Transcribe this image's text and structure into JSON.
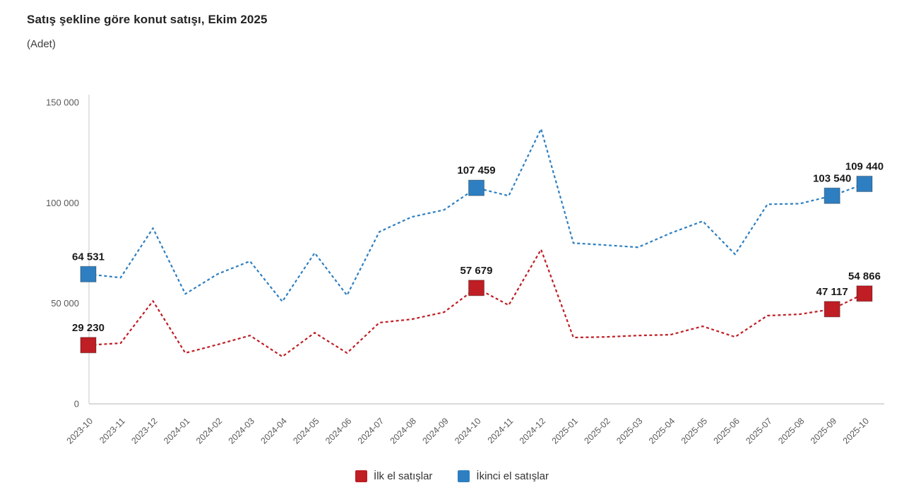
{
  "header": {
    "title": "Satış şekline göre konut satışı, Ekim 2025",
    "subtitle": "(Adet)"
  },
  "chart_data": {
    "type": "line",
    "title": "Satış şekline göre konut satışı, Ekim 2025",
    "xlabel": "",
    "ylabel": "(Adet)",
    "ylim": [
      0,
      150000
    ],
    "grid": false,
    "line_style": "dashed",
    "legend_position": "bottom",
    "categories": [
      "2023-10",
      "2023-11",
      "2023-12",
      "2024-01",
      "2024-02",
      "2024-03",
      "2024-04",
      "2024-05",
      "2024-06",
      "2024-07",
      "2024-08",
      "2024-09",
      "2024-10",
      "2024-11",
      "2024-12",
      "2025-01",
      "2025-02",
      "2025-03",
      "2025-04",
      "2025-05",
      "2025-06",
      "2025-07",
      "2025-08",
      "2025-09",
      "2025-10"
    ],
    "yticks": [
      {
        "value": 0,
        "label": "0"
      },
      {
        "value": 50000,
        "label": "50 000"
      },
      {
        "value": 100000,
        "label": "100 000"
      },
      {
        "value": 150000,
        "label": "150 000"
      }
    ],
    "series": [
      {
        "name": "İkinci el satışlar",
        "color": "#2E7FC1",
        "values": [
          64531,
          62800,
          87400,
          54700,
          64600,
          71000,
          50900,
          75100,
          54000,
          85600,
          93000,
          96500,
          107459,
          103500,
          136800,
          80000,
          79000,
          77900,
          84900,
          90900,
          74400,
          99300,
          99600,
          103540,
          109440
        ],
        "labeled_points": {
          "0": "64 531",
          "12": "107 459",
          "23": "103 540",
          "24": "109 440"
        }
      },
      {
        "name": "İlk el satışlar",
        "color": "#BE1E24",
        "values": [
          29230,
          30200,
          51200,
          25300,
          29500,
          34000,
          23500,
          35400,
          25300,
          40400,
          42100,
          45600,
          57679,
          49100,
          76800,
          33000,
          33300,
          34000,
          34400,
          38600,
          33300,
          43900,
          44600,
          47117,
          54866
        ],
        "labeled_points": {
          "0": "29 230",
          "12": "57 679",
          "23": "47 117",
          "24": "54 866"
        }
      }
    ]
  },
  "legend": {
    "items": [
      {
        "label": "İlk el satışlar",
        "color": "#BE1E24"
      },
      {
        "label": "İkinci el satışlar",
        "color": "#2E7FC1"
      }
    ]
  },
  "colors": {
    "axis": "#D9D9D9",
    "tick_text": "#595959",
    "data_label_text": "#1A1A1A"
  }
}
